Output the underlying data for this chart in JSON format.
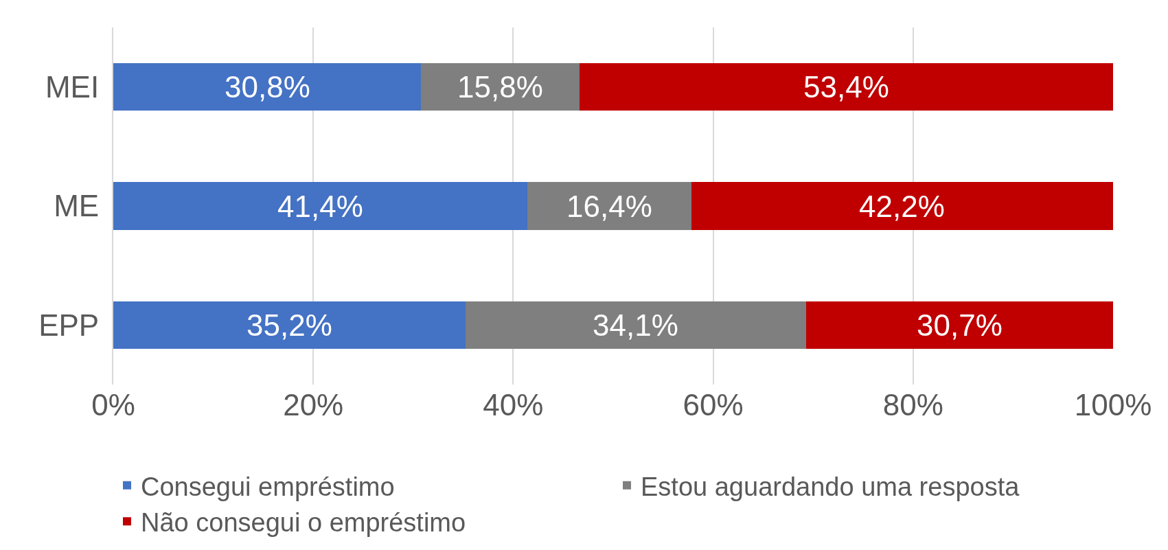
{
  "chart_data": {
    "type": "bar",
    "orientation": "horizontal",
    "stacked": true,
    "categories": [
      "MEI",
      "ME",
      "EPP"
    ],
    "series": [
      {
        "name": "Consegui empréstimo",
        "color": "#4472c4",
        "values": [
          30.8,
          41.4,
          35.2
        ],
        "value_labels": [
          "30,8%",
          "41,4%",
          "35,2%"
        ]
      },
      {
        "name": "Estou aguardando uma resposta",
        "color": "#7f7f7f",
        "values": [
          15.8,
          16.4,
          34.1
        ],
        "value_labels": [
          "15,8%",
          "16,4%",
          "34,1%"
        ]
      },
      {
        "name": "Não consegui o empréstimo",
        "color": "#c00000",
        "values": [
          53.4,
          42.2,
          30.7
        ],
        "value_labels": [
          "53,4%",
          "42,2%",
          "30,7%"
        ]
      }
    ],
    "xlim": [
      0,
      100
    ],
    "xticks": [
      {
        "value": 0,
        "label": "0%"
      },
      {
        "value": 20,
        "label": "20%"
      },
      {
        "value": 40,
        "label": "40%"
      },
      {
        "value": 60,
        "label": "60%"
      },
      {
        "value": 80,
        "label": "80%"
      },
      {
        "value": 100,
        "label": "100%"
      }
    ],
    "grid": "x",
    "legend": "bottom"
  }
}
